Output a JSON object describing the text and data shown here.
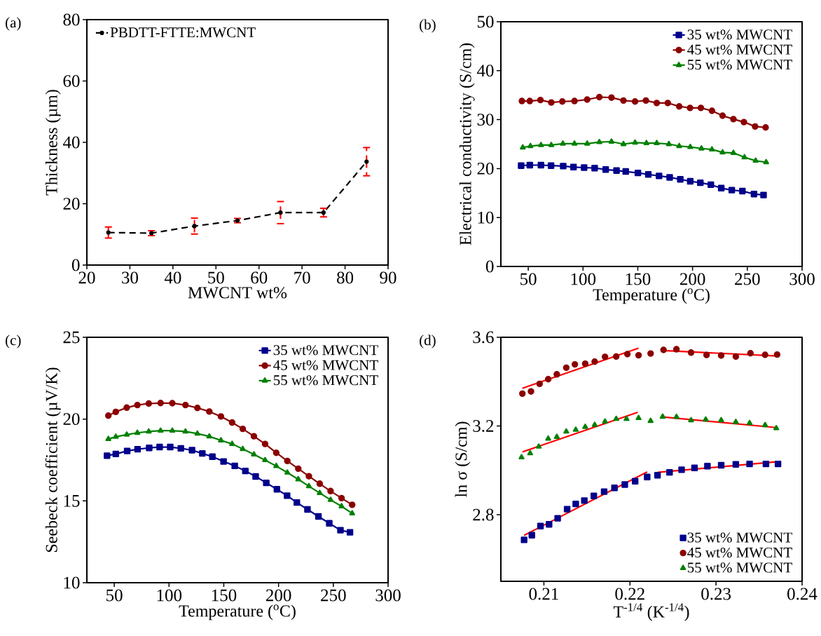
{
  "chart_data": [
    {
      "type": "line",
      "annotations": [
        "(a)"
      ],
      "xlabel": "MWCNT wt%",
      "ylabel": "Thickness (µm)",
      "xlim": [
        20,
        90
      ],
      "ylim": [
        0,
        80
      ],
      "xticks": [
        20,
        30,
        40,
        50,
        60,
        70,
        80,
        90
      ],
      "yticks": [
        0,
        20,
        40,
        60,
        80
      ],
      "legend": "top left",
      "x": [
        25,
        35,
        45,
        55,
        65,
        75,
        85
      ],
      "series": [
        {
          "name": "PBDTT-FTTE:MWCNT",
          "color": "#000000",
          "marker": "circle",
          "line_style": "dashed",
          "values": [
            10.6,
            10.4,
            12.7,
            14.5,
            17.1,
            17.1,
            33.7
          ],
          "errors": [
            1.8,
            0.8,
            2.6,
            0.7,
            3.6,
            1.4,
            4.6
          ]
        }
      ]
    },
    {
      "type": "line",
      "annotations": [
        "(b)"
      ],
      "xlabel": "Temperature ($^{o}$C)",
      "ylabel": "Electrical conductivity (S/cm)",
      "xlim": [
        25,
        300
      ],
      "ylim": [
        0,
        50
      ],
      "xticks": [
        50,
        100,
        150,
        200,
        250,
        300
      ],
      "yticks": [
        0,
        10,
        20,
        30,
        40,
        50
      ],
      "legend": "top right",
      "series": [
        {
          "name": "35 wt% MWCNT",
          "color": "#00008b",
          "marker": "square",
          "x": [
            43.5,
            51.4,
            61.6,
            70.8,
            81.9,
            91.3,
            101,
            110.6,
            120.7,
            130.6,
            139,
            150.1,
            159.6,
            169.4,
            179.1,
            188.8,
            197.9,
            207.1,
            216.7,
            226.2,
            235.8,
            245.5,
            256.1,
            264.8
          ],
          "values": [
            20.6,
            20.7,
            20.7,
            20.6,
            20.5,
            20.3,
            20.2,
            20.1,
            19.8,
            19.6,
            19.4,
            19.1,
            18.8,
            18.5,
            18.2,
            17.8,
            17.4,
            17.1,
            16.7,
            16.0,
            15.6,
            15.4,
            14.8,
            14.6
          ]
        },
        {
          "name": "45 wt% MWCNT",
          "color": "#8b0000",
          "marker": "circle",
          "x": [
            44.2,
            51.4,
            61.1,
            71,
            81.1,
            92.2,
            103.8,
            114.9,
            126,
            136.9,
            147.5,
            157.4,
            167.3,
            177.4,
            187.8,
            197.7,
            207.6,
            217.7,
            227.4,
            237.3,
            246.9,
            257.1,
            266.7
          ],
          "values": [
            33.8,
            33.8,
            34.0,
            33.5,
            33.7,
            33.8,
            34.1,
            34.6,
            34.5,
            33.9,
            33.7,
            33.9,
            33.4,
            33.4,
            32.7,
            32.4,
            32.4,
            31.8,
            30.8,
            30.1,
            29.5,
            28.6,
            28.4
          ]
        },
        {
          "name": "55 wt% MWCNT",
          "color": "#008000",
          "marker": "triangle",
          "x": [
            45.0,
            52.0,
            61.6,
            71,
            81.6,
            92.2,
            103.8,
            114.9,
            126,
            136.9,
            147.5,
            157.9,
            167.3,
            178.4,
            187.8,
            197.9,
            208.1,
            217.7,
            227.4,
            237.3,
            247.4,
            257.6,
            267.2
          ],
          "values": [
            24.3,
            24.6,
            24.8,
            24.8,
            25.1,
            25.1,
            25.1,
            25.4,
            25.5,
            25.0,
            25.3,
            25.2,
            25.2,
            25.0,
            24.6,
            24.4,
            24.1,
            23.9,
            23.3,
            23.2,
            22.3,
            21.6,
            21.3
          ]
        }
      ]
    },
    {
      "type": "line",
      "annotations": [
        "(c)"
      ],
      "xlabel": "Temperature ($^{o}$C)",
      "ylabel": "Seebeck coefficient (µV/K)",
      "xlim": [
        25,
        300
      ],
      "ylim": [
        10,
        25
      ],
      "xticks": [
        50,
        100,
        150,
        200,
        250,
        300
      ],
      "yticks": [
        10,
        15,
        20,
        25
      ],
      "legend": "top right",
      "series": [
        {
          "name": "35 wt% MWCNT",
          "color": "#00008b",
          "marker": "square",
          "x": [
            43.4,
            51.4,
            61.8,
            71.3,
            81.9,
            91.4,
            101.1,
            110.8,
            121,
            130.4,
            139.6,
            149.8,
            160,
            169.7,
            179.1,
            188.8,
            198.5,
            207.8,
            216.7,
            226.4,
            236.4,
            246.3,
            256.5,
            265.2
          ],
          "values": [
            17.76,
            17.87,
            18.05,
            18.16,
            18.24,
            18.29,
            18.29,
            18.21,
            18.1,
            17.9,
            17.7,
            17.41,
            17.14,
            16.83,
            16.49,
            16.1,
            15.71,
            15.32,
            14.9,
            14.48,
            14.05,
            13.63,
            13.21,
            13.08
          ]
        },
        {
          "name": "45 wt% MWCNT",
          "color": "#8b0000",
          "marker": "circle",
          "x": [
            44.6,
            51.4,
            61.4,
            71.1,
            81.5,
            92.3,
            103,
            115,
            125.9,
            136.8,
            147.4,
            157.6,
            167.3,
            177.5,
            187.7,
            197.9,
            208,
            218,
            227.7,
            237.6,
            247.5,
            257.5,
            267.2
          ],
          "values": [
            20.21,
            20.44,
            20.7,
            20.86,
            20.95,
            20.98,
            20.97,
            20.86,
            20.68,
            20.46,
            20.16,
            19.79,
            19.4,
            18.95,
            18.48,
            17.94,
            17.44,
            16.97,
            16.51,
            16.05,
            15.6,
            15.17,
            14.76
          ]
        },
        {
          "name": "55 wt% MWCNT",
          "color": "#008000",
          "marker": "triangle",
          "x": [
            44.6,
            51.4,
            61.4,
            71.1,
            81.5,
            92.3,
            103,
            115,
            125.9,
            136.8,
            147.4,
            157.6,
            167.3,
            177.5,
            187.7,
            197.9,
            208,
            218,
            227.7,
            237.6,
            247.5,
            257.5,
            267.2
          ],
          "values": [
            18.78,
            18.92,
            19.05,
            19.16,
            19.24,
            19.29,
            19.29,
            19.24,
            19.11,
            18.94,
            18.7,
            18.48,
            18.17,
            17.84,
            17.49,
            17.13,
            16.73,
            16.32,
            15.9,
            15.48,
            15.06,
            14.67,
            14.24
          ]
        }
      ]
    },
    {
      "type": "scatter",
      "annotations": [
        "(d)"
      ],
      "xlabel": "T$^{-1/4}$ (K$^{-1/4}$)",
      "ylabel": "ln σ (S/cm)",
      "xlim": [
        0.205,
        0.24
      ],
      "ylim": [
        2.5,
        3.6
      ],
      "xticks": [
        0.21,
        0.22,
        0.23,
        0.24
      ],
      "yticks": [
        2.8,
        3.2,
        3.6
      ],
      "legend": "bottom right",
      "series": [
        {
          "name": "35 wt% MWCNT",
          "color": "#00008b",
          "marker": "square",
          "x": [
            0.2077,
            0.2086,
            0.2096,
            0.2106,
            0.2116,
            0.2127,
            0.2137,
            0.2147,
            0.2158,
            0.217,
            0.2182,
            0.2194,
            0.2206,
            0.222,
            0.2232,
            0.2246,
            0.226,
            0.2275,
            0.229,
            0.2306,
            0.2323,
            0.2339,
            0.2358,
            0.2372
          ],
          "values": [
            2.687,
            2.708,
            2.749,
            2.757,
            2.784,
            2.825,
            2.849,
            2.864,
            2.885,
            2.904,
            2.921,
            2.936,
            2.951,
            2.97,
            2.978,
            2.991,
            3.003,
            3.011,
            3.019,
            3.023,
            3.027,
            3.029,
            3.029,
            3.029
          ]
        },
        {
          "name": "45 wt% MWCNT",
          "color": "#8b0000",
          "marker": "circle",
          "x": [
            0.2075,
            0.2085,
            0.2095,
            0.2105,
            0.2115,
            0.2126,
            0.2136,
            0.2148,
            0.2159,
            0.2171,
            0.2184,
            0.2197,
            0.221,
            0.2224,
            0.2239,
            0.2254,
            0.2271,
            0.2289,
            0.2306,
            0.2323,
            0.234,
            0.2357,
            0.2371
          ],
          "values": [
            3.346,
            3.356,
            3.39,
            3.411,
            3.433,
            3.463,
            3.478,
            3.481,
            3.49,
            3.512,
            3.513,
            3.524,
            3.519,
            3.527,
            3.543,
            3.546,
            3.531,
            3.52,
            3.518,
            3.513,
            3.528,
            3.521,
            3.522
          ]
        },
        {
          "name": "55 wt% MWCNT",
          "color": "#008000",
          "marker": "triangle",
          "x": [
            0.2074,
            0.2084,
            0.2094,
            0.2105,
            0.2115,
            0.2126,
            0.2137,
            0.2148,
            0.2159,
            0.2171,
            0.2184,
            0.2196,
            0.221,
            0.2224,
            0.2238,
            0.2254,
            0.2271,
            0.2288,
            0.2306,
            0.2323,
            0.2339,
            0.2357,
            0.237
          ],
          "values": [
            3.059,
            3.077,
            3.107,
            3.143,
            3.151,
            3.175,
            3.183,
            3.196,
            3.205,
            3.22,
            3.232,
            3.232,
            3.236,
            3.223,
            3.242,
            3.241,
            3.226,
            3.229,
            3.226,
            3.218,
            3.213,
            3.204,
            3.19
          ]
        },
        {
          "type": "line",
          "color": "#ff0000",
          "marker": "none",
          "x": [
            0.2077,
            0.222
          ],
          "values": [
            2.707,
            2.993
          ]
        },
        {
          "type": "line",
          "color": "#ff0000",
          "marker": "none",
          "x": [
            0.2232,
            0.2372
          ],
          "values": [
            2.991,
            3.039
          ]
        },
        {
          "type": "line",
          "color": "#ff0000",
          "marker": "none",
          "x": [
            0.2075,
            0.221
          ],
          "values": [
            3.37,
            3.551
          ]
        },
        {
          "type": "line",
          "color": "#ff0000",
          "marker": "none",
          "x": [
            0.2238,
            0.237
          ],
          "values": [
            3.54,
            3.516
          ]
        },
        {
          "type": "line",
          "color": "#ff0000",
          "marker": "none",
          "x": [
            0.2075,
            0.2209
          ],
          "values": [
            3.083,
            3.262
          ]
        },
        {
          "type": "line",
          "color": "#ff0000",
          "marker": "none",
          "x": [
            0.2238,
            0.237
          ],
          "values": [
            3.241,
            3.193
          ]
        }
      ]
    }
  ]
}
